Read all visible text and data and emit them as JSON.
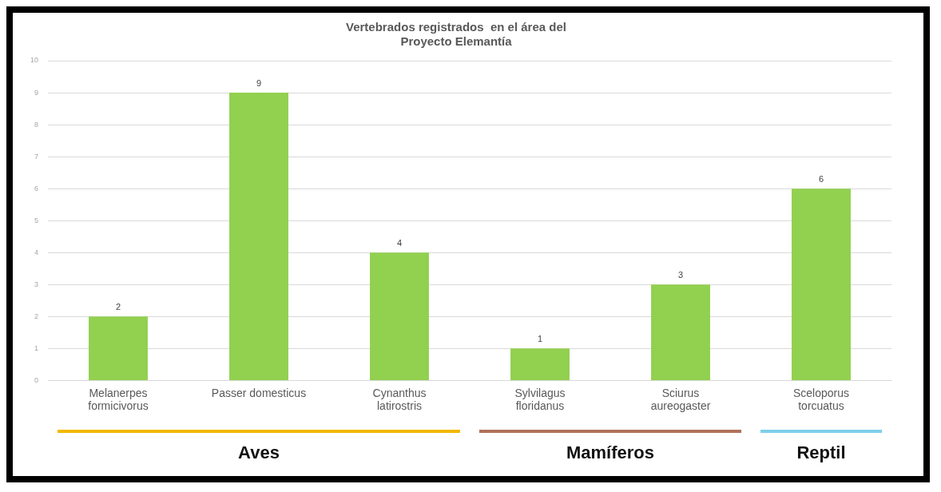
{
  "chart_data": {
    "type": "bar",
    "title": "Vertebrados registrados  en el área del\nProyecto Elemantía",
    "categories": [
      "Melanerpes\nformicivorus",
      "Passer domesticus",
      "Cynanthus\nlatirostris",
      "Sylvilagus\nfloridanus",
      "Sciurus\naureogaster",
      "Sceloporus\ntorcuatus"
    ],
    "values": [
      2,
      9,
      4,
      1,
      3,
      6
    ],
    "color": "#92d050",
    "ylim": [
      0,
      10
    ],
    "yticks": [
      0,
      1,
      2,
      3,
      4,
      5,
      6,
      7,
      8,
      9,
      10
    ],
    "grid": "y",
    "data_labels": true,
    "annotations": [
      "Aves",
      "Mamíferos",
      "Reptil"
    ]
  }
}
